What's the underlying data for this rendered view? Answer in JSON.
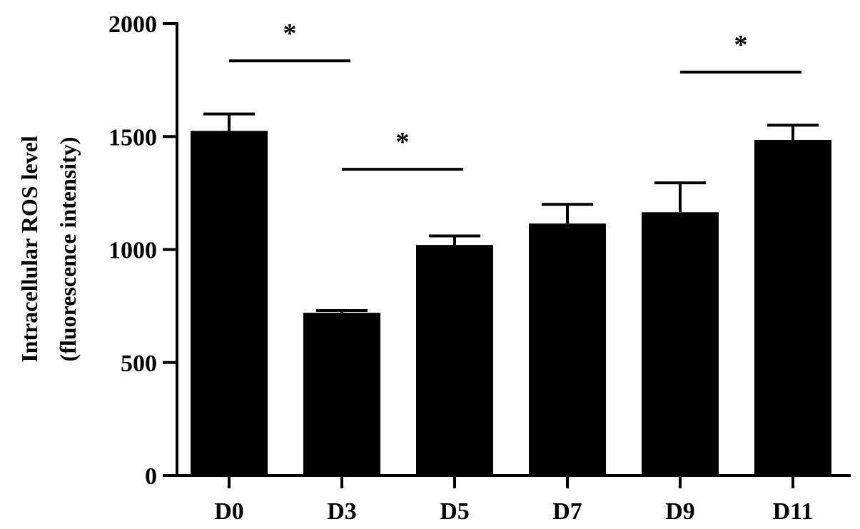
{
  "chart_data": {
    "type": "bar",
    "title": "",
    "xlabel": "",
    "ylabel_lines": [
      "Intracellular ROS level",
      "(fluorescence intensity)"
    ],
    "categories": [
      "D0",
      "D3",
      "D5",
      "D7",
      "D9",
      "D11"
    ],
    "values": [
      1525,
      720,
      1020,
      1115,
      1165,
      1485
    ],
    "error_upper": [
      75,
      10,
      40,
      85,
      130,
      65
    ],
    "ylim": [
      0,
      2000
    ],
    "yticks": [
      0,
      500,
      1000,
      1500,
      2000
    ],
    "ytick_labels": [
      "0",
      "500",
      "1000",
      "1500",
      "2000"
    ],
    "bar_color": "#000000",
    "grid": false,
    "legend": "none",
    "significance": [
      {
        "from": "D0",
        "to": "D3",
        "level": 1835,
        "label": "*"
      },
      {
        "from": "D3",
        "to": "D5",
        "level": 1355,
        "label": "*"
      },
      {
        "from": "D9",
        "to": "D11",
        "level": 1785,
        "label": "*"
      }
    ]
  }
}
